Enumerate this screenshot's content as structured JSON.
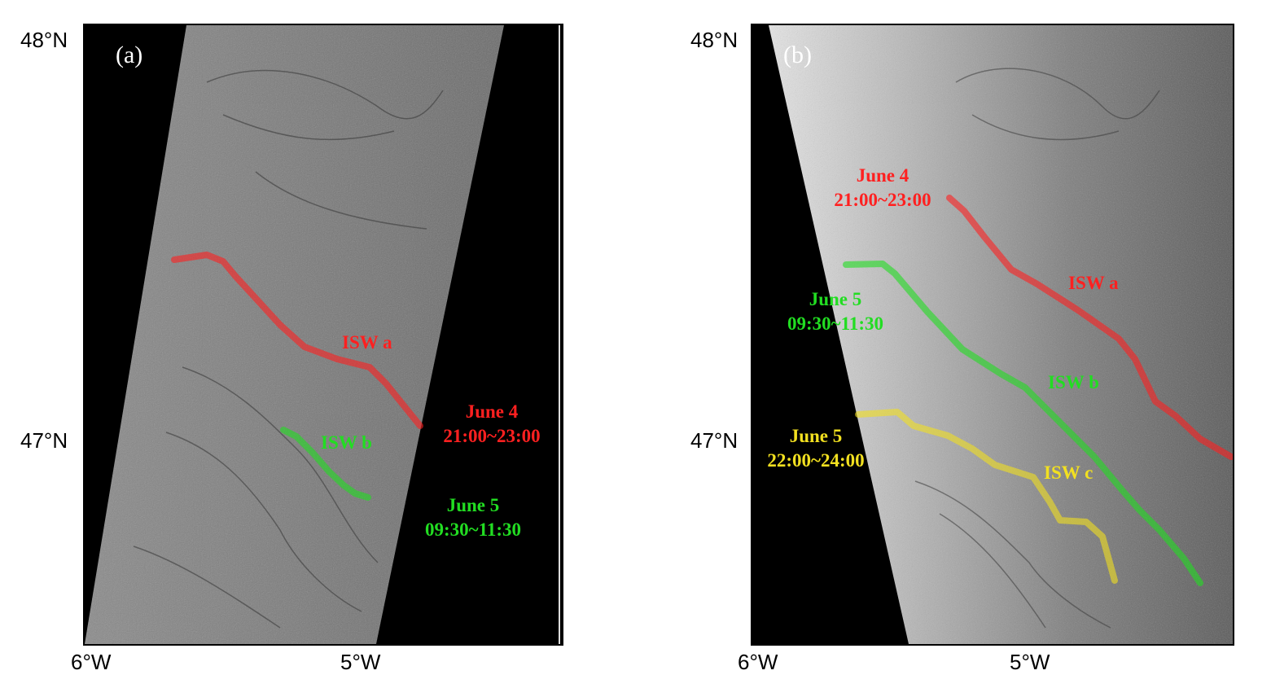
{
  "panels": [
    {
      "label": "(a)",
      "y_ticks": [
        "48°N",
        "47°N"
      ],
      "x_ticks": [
        "6°W",
        "5°W"
      ],
      "waves": [
        {
          "label": "ISW a",
          "time_line1": "June 4",
          "time_line2": "21:00~23:00",
          "color": "#ff2020"
        },
        {
          "label": "ISW b",
          "time_line1": "June 5",
          "time_line2": "09:30~11:30",
          "color": "#22dd22"
        }
      ]
    },
    {
      "label": "(b)",
      "y_ticks": [
        "48°N",
        "47°N"
      ],
      "x_ticks": [
        "6°W",
        "5°W"
      ],
      "waves": [
        {
          "label": "ISW a",
          "time_line1": "June 4",
          "time_line2": "21:00~23:00",
          "color": "#ff2020"
        },
        {
          "label": "ISW b",
          "time_line1": "June 5",
          "time_line2": "09:30~11:30",
          "color": "#22dd22"
        },
        {
          "label": "ISW c",
          "time_line1": "June 5",
          "time_line2": "22:00~24:00",
          "color": "#f2e020"
        }
      ]
    }
  ]
}
